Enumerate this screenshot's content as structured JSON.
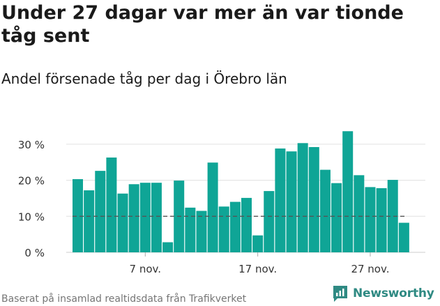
{
  "header": {
    "title": "Under 27 dagar var mer än var tionde tåg sent",
    "subtitle": "Andel försenade tåg per dag i Örebro län"
  },
  "footer": {
    "source": "Baserat på insamlad realtidsdata från Trafikverket",
    "brand": "Newsworthy"
  },
  "colors": {
    "bar": "#0fa596",
    "reference_line": "#555555",
    "brand": "#2f8a83"
  },
  "chart_data": {
    "type": "bar",
    "categories": [
      "1 nov.",
      "2 nov.",
      "3 nov.",
      "4 nov.",
      "5 nov.",
      "6 nov.",
      "7 nov.",
      "8 nov.",
      "9 nov.",
      "10 nov.",
      "11 nov.",
      "12 nov.",
      "13 nov.",
      "14 nov.",
      "15 nov.",
      "16 nov.",
      "17 nov.",
      "18 nov.",
      "19 nov.",
      "20 nov.",
      "21 nov.",
      "22 nov.",
      "23 nov.",
      "24 nov.",
      "25 nov.",
      "26 nov.",
      "27 nov.",
      "28 nov.",
      "29 nov.",
      "30 nov."
    ],
    "values": [
      20.3,
      17.2,
      22.6,
      26.3,
      16.3,
      18.9,
      19.3,
      19.3,
      2.8,
      19.9,
      12.4,
      11.5,
      24.9,
      12.7,
      14.0,
      15.1,
      4.7,
      17.0,
      28.8,
      28.0,
      30.3,
      29.2,
      22.9,
      19.2,
      33.6,
      21.4,
      18.1,
      17.8,
      20.1,
      8.2
    ],
    "xticks": [
      {
        "index": 6,
        "label": "7 nov."
      },
      {
        "index": 16,
        "label": "17 nov."
      },
      {
        "index": 26,
        "label": "27 nov."
      }
    ],
    "yticks": [
      {
        "value": 0,
        "label": "0 %"
      },
      {
        "value": 10,
        "label": "10 %"
      },
      {
        "value": 20,
        "label": "20 %"
      },
      {
        "value": 30,
        "label": "30 %"
      }
    ],
    "ylim": [
      0,
      35
    ],
    "reference_line": 10,
    "grid": true,
    "legend": "none"
  }
}
